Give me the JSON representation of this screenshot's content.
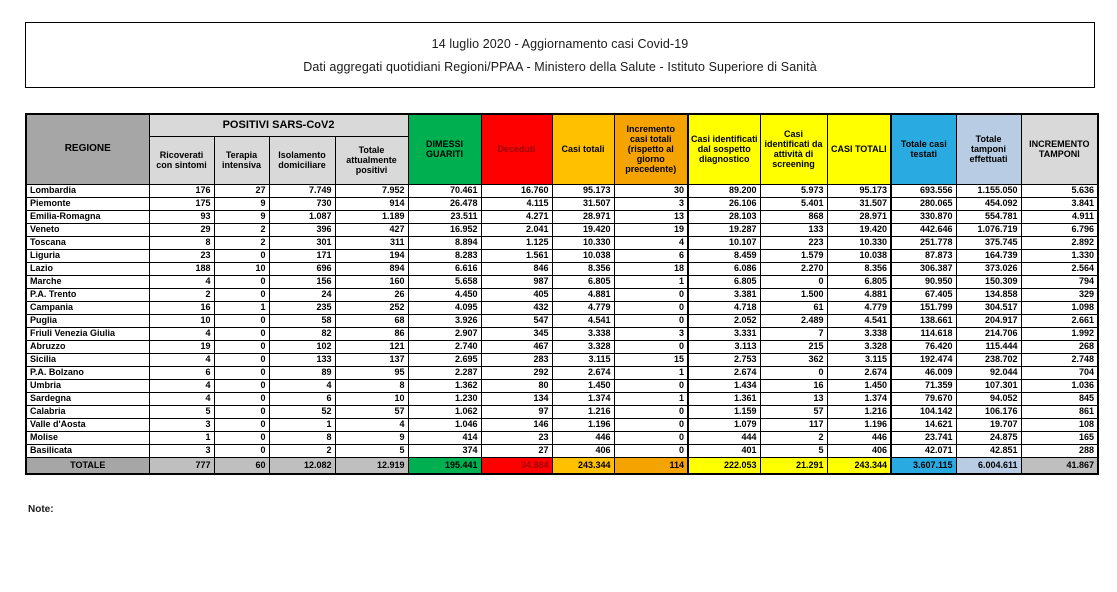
{
  "title": {
    "line1": "14 luglio 2020 - Aggiornamento casi Covid-19",
    "line2": "Dati aggregati quotidiani Regioni/PPAA - Ministero della Salute - Istituto Superiore di Sanità"
  },
  "note_label": "Note:",
  "colors": {
    "header_gray": "#a6a6a6",
    "subheader_gray": "#d9d9d9",
    "total_gray": "#bfbfbf",
    "green_dimessi": "#00b050",
    "red_deceduti": "#ff0000",
    "red_text": "#9c0006",
    "gold_casi_totali": "#ffc000",
    "orange_incremento": "#f5a300",
    "yellow_casi": "#ffff00",
    "blue_testati": "#29abe2",
    "periwinkle_tamponi": "#b8cce4"
  },
  "table": {
    "header": {
      "regione": "REGIONE",
      "positivi_group": "POSITIVI SARS-CoV2",
      "sub": [
        "Ricoverati con sintomi",
        "Terapia intensiva",
        "Isolamento domiciliare",
        "Totale attualmente positivi"
      ],
      "dimessi": "DIMESSI GUARITI",
      "deceduti": "Deceduti",
      "casi_totali": "Casi totali",
      "incremento_casi": "Incremento casi totali (rispetto al giorno precedente)",
      "sospetto": "Casi identificati dal sospetto diagnostico",
      "screening": "Casi identificati da attività di screening",
      "casi_totali_2": "CASI TOTALI",
      "testati": "Totale casi testati",
      "tamponi": "Totale tamponi effettuati",
      "incremento_tamponi": "INCREMENTO TAMPONI"
    },
    "rows": [
      {
        "region": "Lombardia",
        "values": [
          "176",
          "27",
          "7.749",
          "7.952",
          "70.461",
          "16.760",
          "95.173",
          "30",
          "89.200",
          "5.973",
          "95.173",
          "693.556",
          "1.155.050",
          "5.636"
        ]
      },
      {
        "region": "Piemonte",
        "values": [
          "175",
          "9",
          "730",
          "914",
          "26.478",
          "4.115",
          "31.507",
          "3",
          "26.106",
          "5.401",
          "31.507",
          "280.065",
          "454.092",
          "3.841"
        ]
      },
      {
        "region": "Emilia-Romagna",
        "values": [
          "93",
          "9",
          "1.087",
          "1.189",
          "23.511",
          "4.271",
          "28.971",
          "13",
          "28.103",
          "868",
          "28.971",
          "330.870",
          "554.781",
          "4.911"
        ]
      },
      {
        "region": "Veneto",
        "values": [
          "29",
          "2",
          "396",
          "427",
          "16.952",
          "2.041",
          "19.420",
          "19",
          "19.287",
          "133",
          "19.420",
          "442.646",
          "1.076.719",
          "6.796"
        ]
      },
      {
        "region": "Toscana",
        "values": [
          "8",
          "2",
          "301",
          "311",
          "8.894",
          "1.125",
          "10.330",
          "4",
          "10.107",
          "223",
          "10.330",
          "251.778",
          "375.745",
          "2.892"
        ]
      },
      {
        "region": "Liguria",
        "values": [
          "23",
          "0",
          "171",
          "194",
          "8.283",
          "1.561",
          "10.038",
          "6",
          "8.459",
          "1.579",
          "10.038",
          "87.873",
          "164.739",
          "1.330"
        ]
      },
      {
        "region": "Lazio",
        "values": [
          "188",
          "10",
          "696",
          "894",
          "6.616",
          "846",
          "8.356",
          "18",
          "6.086",
          "2.270",
          "8.356",
          "306.387",
          "373.026",
          "2.564"
        ]
      },
      {
        "region": "Marche",
        "values": [
          "4",
          "0",
          "156",
          "160",
          "5.658",
          "987",
          "6.805",
          "1",
          "6.805",
          "0",
          "6.805",
          "90.950",
          "150.309",
          "794"
        ]
      },
      {
        "region": "P.A. Trento",
        "values": [
          "2",
          "0",
          "24",
          "26",
          "4.450",
          "405",
          "4.881",
          "0",
          "3.381",
          "1.500",
          "4.881",
          "67.405",
          "134.858",
          "329"
        ]
      },
      {
        "region": "Campania",
        "values": [
          "16",
          "1",
          "235",
          "252",
          "4.095",
          "432",
          "4.779",
          "0",
          "4.718",
          "61",
          "4.779",
          "151.799",
          "304.517",
          "1.098"
        ]
      },
      {
        "region": "Puglia",
        "values": [
          "10",
          "0",
          "58",
          "68",
          "3.926",
          "547",
          "4.541",
          "0",
          "2.052",
          "2.489",
          "4.541",
          "138.661",
          "204.917",
          "2.661"
        ]
      },
      {
        "region": "Friuli Venezia Giulia",
        "values": [
          "4",
          "0",
          "82",
          "86",
          "2.907",
          "345",
          "3.338",
          "3",
          "3.331",
          "7",
          "3.338",
          "114.618",
          "214.706",
          "1.992"
        ]
      },
      {
        "region": "Abruzzo",
        "values": [
          "19",
          "0",
          "102",
          "121",
          "2.740",
          "467",
          "3.328",
          "0",
          "3.113",
          "215",
          "3.328",
          "76.420",
          "115.444",
          "268"
        ]
      },
      {
        "region": "Sicilia",
        "values": [
          "4",
          "0",
          "133",
          "137",
          "2.695",
          "283",
          "3.115",
          "15",
          "2.753",
          "362",
          "3.115",
          "192.474",
          "238.702",
          "2.748"
        ]
      },
      {
        "region": "P.A. Bolzano",
        "values": [
          "6",
          "0",
          "89",
          "95",
          "2.287",
          "292",
          "2.674",
          "1",
          "2.674",
          "0",
          "2.674",
          "46.009",
          "92.044",
          "704"
        ]
      },
      {
        "region": "Umbria",
        "values": [
          "4",
          "0",
          "4",
          "8",
          "1.362",
          "80",
          "1.450",
          "0",
          "1.434",
          "16",
          "1.450",
          "71.359",
          "107.301",
          "1.036"
        ]
      },
      {
        "region": "Sardegna",
        "values": [
          "4",
          "0",
          "6",
          "10",
          "1.230",
          "134",
          "1.374",
          "1",
          "1.361",
          "13",
          "1.374",
          "79.670",
          "94.052",
          "845"
        ]
      },
      {
        "region": "Calabria",
        "values": [
          "5",
          "0",
          "52",
          "57",
          "1.062",
          "97",
          "1.216",
          "0",
          "1.159",
          "57",
          "1.216",
          "104.142",
          "106.176",
          "861"
        ]
      },
      {
        "region": "Valle d'Aosta",
        "values": [
          "3",
          "0",
          "1",
          "4",
          "1.046",
          "146",
          "1.196",
          "0",
          "1.079",
          "117",
          "1.196",
          "14.621",
          "19.707",
          "108"
        ]
      },
      {
        "region": "Molise",
        "values": [
          "1",
          "0",
          "8",
          "9",
          "414",
          "23",
          "446",
          "0",
          "444",
          "2",
          "446",
          "23.741",
          "24.875",
          "165"
        ]
      },
      {
        "region": "Basilicata",
        "values": [
          "3",
          "0",
          "2",
          "5",
          "374",
          "27",
          "406",
          "0",
          "401",
          "5",
          "406",
          "42.071",
          "42.851",
          "288"
        ]
      }
    ],
    "total": {
      "label": "TOTALE",
      "values": [
        "777",
        "60",
        "12.082",
        "12.919",
        "195.441",
        "34.984",
        "243.344",
        "114",
        "222.053",
        "21.291",
        "243.344",
        "3.607.115",
        "6.004.611",
        "41.867"
      ]
    }
  }
}
